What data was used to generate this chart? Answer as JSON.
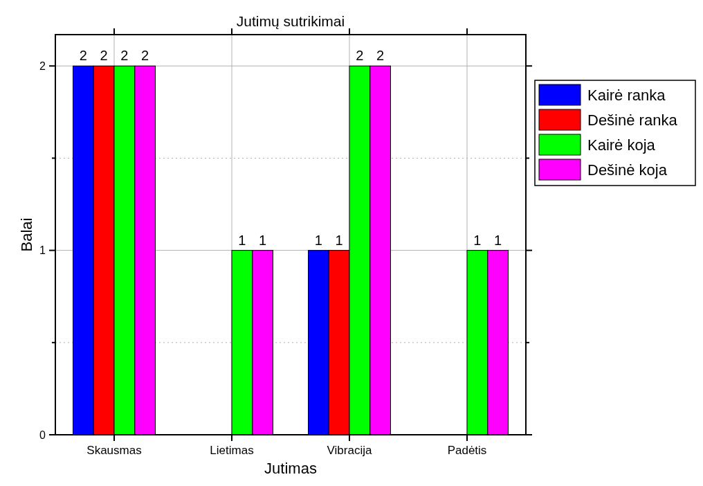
{
  "chart_data": {
    "type": "bar",
    "title": "Jutimų sutrikimai",
    "xlabel": "Jutimas",
    "ylabel": "Balai",
    "categories": [
      "Skausmas",
      "Lietimas",
      "Vibracija",
      "Padėtis"
    ],
    "series": [
      {
        "name": "Kairė ranka",
        "color": "#0000ff",
        "values": [
          2,
          0,
          1,
          0
        ],
        "value_labels": [
          "2",
          null,
          "1",
          null
        ]
      },
      {
        "name": "Dešinė ranka",
        "color": "#ff0000",
        "values": [
          2,
          0,
          1,
          0
        ],
        "value_labels": [
          "2",
          null,
          "1",
          null
        ]
      },
      {
        "name": "Kairė koja",
        "color": "#00ff00",
        "values": [
          2,
          1,
          2,
          1
        ],
        "value_labels": [
          "2",
          "1",
          "2",
          "1"
        ]
      },
      {
        "name": "Dešinė koja",
        "color": "#ff00ff",
        "values": [
          2,
          1,
          2,
          1
        ],
        "value_labels": [
          "2",
          "1",
          "2",
          "1"
        ]
      }
    ],
    "ylim": [
      0,
      2.17
    ],
    "yticks": [
      0,
      {
        "value": 0.5,
        "label": null
      },
      1,
      {
        "value": 1.5,
        "label": null
      },
      2
    ],
    "grid": true,
    "legend": "right"
  }
}
